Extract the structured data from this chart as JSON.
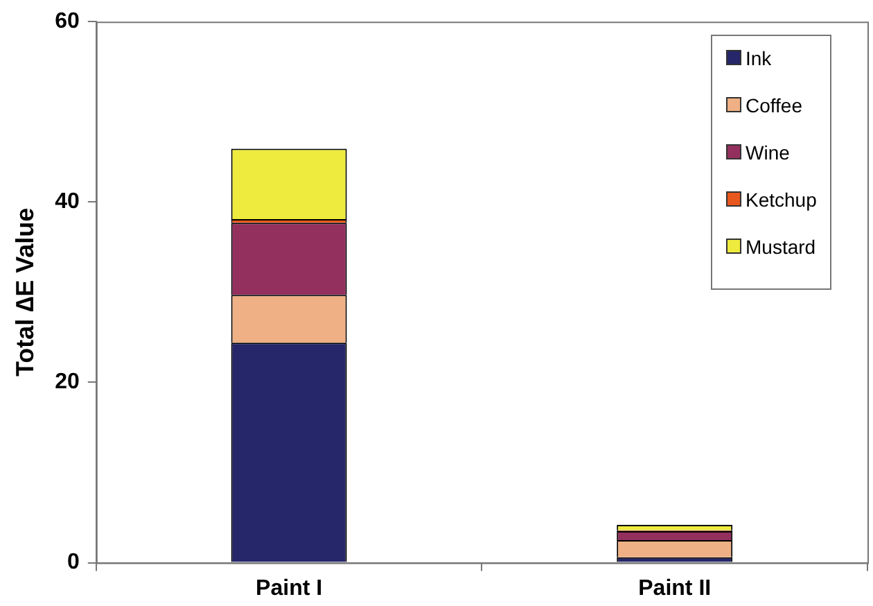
{
  "chart_data": {
    "type": "bar",
    "ylabel": "Total ∆E Value",
    "categories": [
      "Paint I",
      "Paint II"
    ],
    "stacked": true,
    "ylim": [
      0,
      60
    ],
    "yticks": [
      0,
      20,
      40,
      60
    ],
    "grid": false,
    "legend": "top right",
    "series": [
      {
        "name": "Ink",
        "color": "#26266b",
        "values": [
          24.4,
          0.6
        ]
      },
      {
        "name": "Coffee",
        "color": "#eeb084",
        "values": [
          5.3,
          1.9
        ]
      },
      {
        "name": "Wine",
        "color": "#93305e",
        "values": [
          8.0,
          1.0
        ]
      },
      {
        "name": "Ketchup",
        "color": "#e8581e",
        "values": [
          0.4,
          0.1
        ]
      },
      {
        "name": "Mustard",
        "color": "#eeea3e",
        "values": [
          7.8,
          0.6
        ]
      }
    ]
  }
}
